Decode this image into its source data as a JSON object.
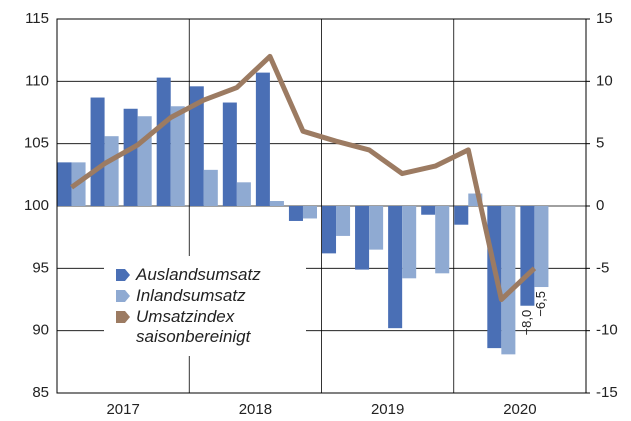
{
  "chart_data": {
    "type": "bar",
    "categories": [
      null,
      null,
      null,
      null,
      null,
      null,
      null,
      null,
      null,
      null,
      null,
      null,
      null,
      null,
      null,
      null
    ],
    "groups": [
      "2017",
      "2018",
      "2019",
      "2020"
    ],
    "series": [
      {
        "name": "Auslandsumsatz",
        "color": "#4a6fb5",
        "axis": "y2",
        "type": "bar",
        "values": [
          3.5,
          8.7,
          7.8,
          10.3,
          9.6,
          8.3,
          10.7,
          -1.2,
          -3.8,
          -5.1,
          -9.8,
          -0.7,
          -1.5,
          -11.4,
          -8.0,
          null
        ],
        "value_labels": [
          null,
          null,
          null,
          null,
          null,
          null,
          null,
          null,
          null,
          null,
          null,
          null,
          null,
          null,
          "−8,0",
          null
        ]
      },
      {
        "name": "Inlandsumsatz",
        "color": "#8faad2",
        "axis": "y2",
        "type": "bar",
        "values": [
          3.5,
          5.6,
          7.2,
          8.0,
          2.9,
          1.9,
          0.4,
          -1.0,
          -2.4,
          -3.5,
          -5.8,
          -5.4,
          1.0,
          -11.9,
          -6.5,
          null
        ],
        "value_labels": [
          null,
          null,
          null,
          null,
          null,
          null,
          null,
          null,
          null,
          null,
          null,
          null,
          null,
          null,
          "−6,5",
          null
        ]
      },
      {
        "name": "Umsatzindex saisonbereinigt",
        "color": "#9c7b62",
        "axis": "y",
        "type": "line",
        "values": [
          101.5,
          103.4,
          104.9,
          107.1,
          108.5,
          109.5,
          112.0,
          106.0,
          105.2,
          104.5,
          102.6,
          103.2,
          104.5,
          92.5,
          95.0,
          null
        ]
      }
    ],
    "ylim": [
      85,
      115
    ],
    "yticks": [
      85,
      90,
      95,
      100,
      105,
      110,
      115
    ],
    "y2lim": [
      -15,
      15
    ],
    "y2ticks": [
      -15,
      -10,
      -5,
      0,
      5,
      10,
      15
    ],
    "grid": true,
    "legend": "lower left"
  }
}
